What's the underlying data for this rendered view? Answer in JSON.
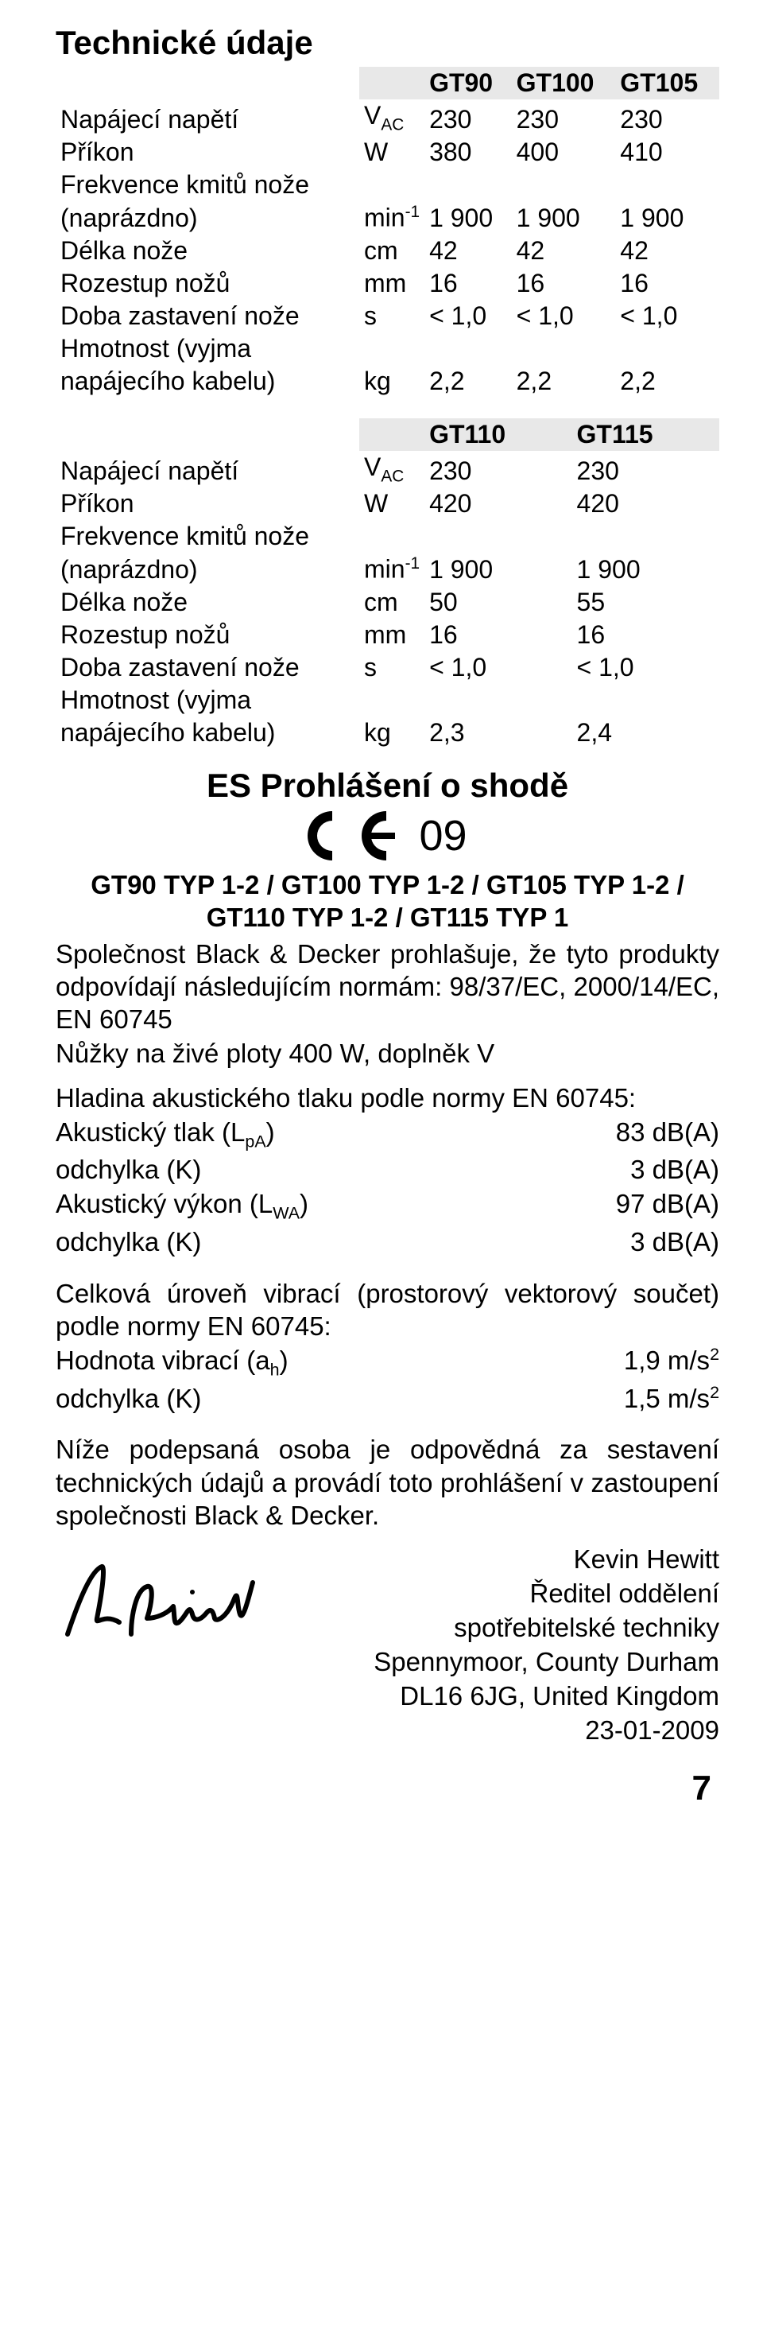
{
  "section_title": "Technické údaje",
  "table1": {
    "headers": [
      "",
      "",
      "GT90",
      "GT100",
      "GT105"
    ],
    "rows": [
      {
        "label": "Napájecí napětí",
        "unit": "V<sub>AC</sub>",
        "c1": "230",
        "c2": "230",
        "c3": "230"
      },
      {
        "label": "Příkon",
        "unit": "W",
        "c1": "380",
        "c2": "400",
        "c3": "410"
      },
      {
        "label": "Frekvence kmitů nože",
        "unit": "",
        "c1": "",
        "c2": "",
        "c3": ""
      },
      {
        "label": "(naprázdno)",
        "unit": "min<sup>-1</sup>",
        "c1": "1 900",
        "c2": "1 900",
        "c3": "1 900"
      },
      {
        "label": "Délka nože",
        "unit": "cm",
        "c1": "42",
        "c2": "42",
        "c3": "42"
      },
      {
        "label": "Rozestup nožů",
        "unit": "mm",
        "c1": "16",
        "c2": "16",
        "c3": "16"
      },
      {
        "label": "Doba zastavení nože",
        "unit": "s",
        "c1": "< 1,0",
        "c2": "< 1,0",
        "c3": "< 1,0"
      },
      {
        "label": "Hmotnost (vyjma",
        "unit": "",
        "c1": "",
        "c2": "",
        "c3": ""
      },
      {
        "label": "napájecího kabelu)",
        "unit": "kg",
        "c1": "2,2",
        "c2": "2,2",
        "c3": "2,2"
      }
    ]
  },
  "table2": {
    "headers": [
      "",
      "",
      "GT110",
      "GT115"
    ],
    "rows": [
      {
        "label": "Napájecí napětí",
        "unit": "V<sub>AC</sub>",
        "c1": "230",
        "c2": "230"
      },
      {
        "label": "Příkon",
        "unit": "W",
        "c1": "420",
        "c2": "420"
      },
      {
        "label": "Frekvence kmitů nože",
        "unit": "",
        "c1": "",
        "c2": ""
      },
      {
        "label": "(naprázdno)",
        "unit": "min<sup>-1</sup>",
        "c1": "1 900",
        "c2": "1 900"
      },
      {
        "label": "Délka nože",
        "unit": "cm",
        "c1": "50",
        "c2": "55"
      },
      {
        "label": "Rozestup nožů",
        "unit": "mm",
        "c1": "16",
        "c2": "16"
      },
      {
        "label": "Doba zastavení nože",
        "unit": "s",
        "c1": "< 1,0",
        "c2": "< 1,0"
      },
      {
        "label": "Hmotnost (vyjma",
        "unit": "",
        "c1": "",
        "c2": ""
      },
      {
        "label": "napájecího kabelu)",
        "unit": "kg",
        "c1": "2,3",
        "c2": "2,4"
      }
    ]
  },
  "conformity_title": "ES Prohlášení o shodě",
  "nine": "09",
  "models_line1": "GT90 TYP 1-2 / GT100 TYP 1-2 / GT105 TYP 1-2 /",
  "models_line2": "GT110 TYP 1-2 / GT115 TYP 1",
  "para1": "Společnost Black & Decker prohlašuje, že tyto produkty odpovídají následujícím normám: 98/37/EC, 2000/14/EC, EN 60745",
  "para1b": "Nůžky na živé ploty 400 W, doplněk V",
  "para2_lead": "Hladina akustického tlaku podle normy EN 60745:",
  "acoustic": [
    {
      "k": "Akustický tlak (L<sub>pA</sub>)",
      "v": "83 dB(A)"
    },
    {
      "k": "odchylka (K)",
      "v": "3 dB(A)"
    },
    {
      "k": "Akustický výkon (L<sub>WA</sub>)",
      "v": "97 dB(A)"
    },
    {
      "k": "odchylka (K)",
      "v": "3 dB(A)"
    }
  ],
  "para3_lead": "Celková úroveň vibrací (prostorový vektorový součet) podle normy EN 60745:",
  "vib": [
    {
      "k": "Hodnota vibrací (a<sub>h</sub>)",
      "v": "1,9 m/s<sup>2</sup>"
    },
    {
      "k": "odchylka (K)",
      "v": "1,5 m/s<sup>2</sup>"
    }
  ],
  "para4": "Níže podepsaná osoba je odpovědná za sestavení technických údajů a provádí toto prohlášení v zastoupení společnosti Black & Decker.",
  "sig_lines": [
    "Kevin Hewitt",
    "Ředitel oddělení",
    "spotřebitelské techniky",
    "Spennymoor, County Durham",
    "DL16 6JG, United Kingdom",
    "23-01-2009"
  ],
  "page_number": "7"
}
